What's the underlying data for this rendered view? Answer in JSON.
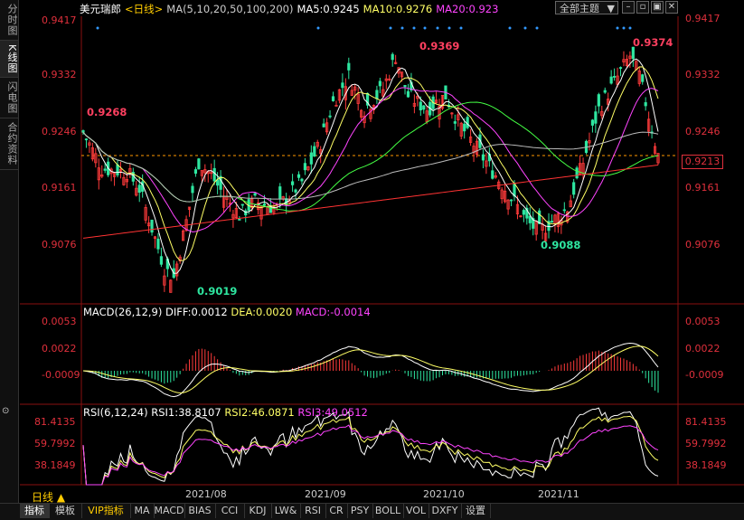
{
  "sidebar": [
    {
      "label": "分时图",
      "active": false
    },
    {
      "label": "K线图",
      "active": true
    },
    {
      "label": "闪电图",
      "active": false
    },
    {
      "label": "合约资料",
      "active": false
    }
  ],
  "header": {
    "symbol": "美元瑞郎",
    "period": "<日线>",
    "ma_set": "MA(5,10,20,50,100,200)",
    "ma5": "MA5:0.9245",
    "ma10": "MA10:0.9276",
    "ma20": "MA20:0.923",
    "theme": "全部主题"
  },
  "price_axis": {
    "left": [
      "0.9417",
      "0.9332",
      "0.9246",
      "0.9161",
      "0.9076"
    ],
    "right": [
      "0.9417",
      "0.9332",
      "0.9246",
      "0.9161",
      "0.9076"
    ],
    "current": "0.9213"
  },
  "price_annotations": {
    "high1": "0.9268",
    "high2": "0.9369",
    "high3": "0.9374",
    "low1": "0.9019",
    "low2": "0.9088"
  },
  "macd": {
    "title": "MACD(26,12,9)",
    "diff": "DIFF:0.0012",
    "dea": "DEA:0.0020",
    "macd": "MACD:-0.0014",
    "axis": [
      "0.0053",
      "0.0022",
      "-0.0009"
    ]
  },
  "rsi": {
    "title": "RSI(6,12,24)",
    "rsi1": "RSI1:38.8107",
    "rsi2": "RSI2:46.0871",
    "rsi3": "RSI3:49.0512",
    "axis": [
      "81.4135",
      "59.7992",
      "38.1849"
    ]
  },
  "date_axis": [
    "2021/08",
    "2021/09",
    "2021/10",
    "2021/11"
  ],
  "period_label": "日线",
  "tabs": [
    "指标",
    "模板",
    "VIP指标",
    "MA",
    "MACD",
    "BIAS",
    "CCI",
    "KDJ",
    "LW&",
    "RSI",
    "CR",
    "PSY",
    "BOLL",
    "VOL",
    "DXFY",
    "设置"
  ],
  "colors": {
    "up": "#ff3b3b",
    "down": "#2ee6a0",
    "ma5": "#ffffff",
    "ma10": "#ffff66",
    "ma20": "#ff44ff",
    "ma50": "#44ff44",
    "ma100": "#bbbbbb",
    "ma200": "#ff3333"
  }
}
